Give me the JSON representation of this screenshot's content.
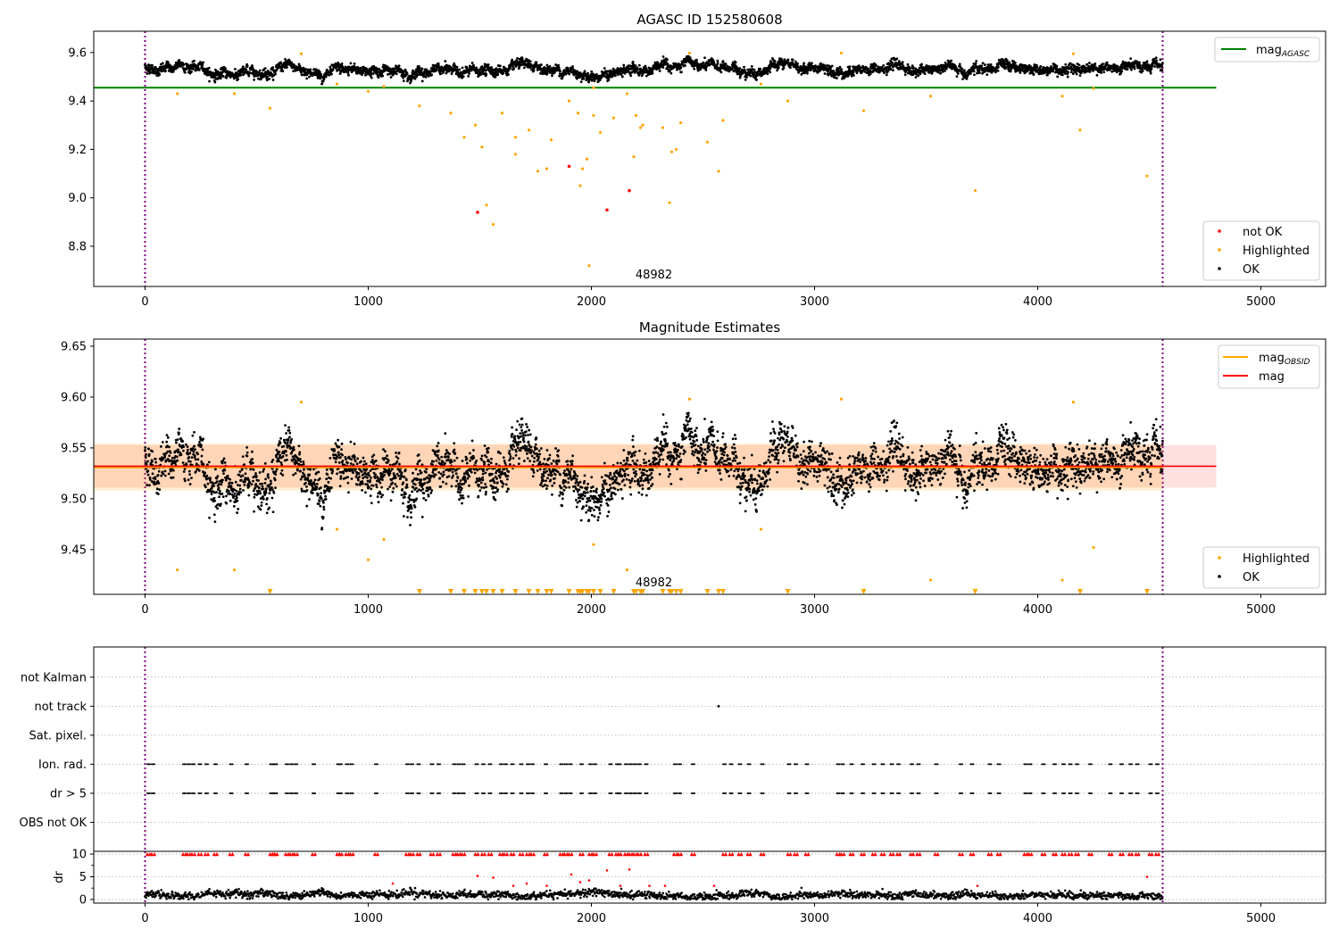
{
  "chart_data": [
    {
      "id": "agasc",
      "type": "scatter",
      "title": "AGASC ID 152580608",
      "xlim": [
        -230,
        5290
      ],
      "ylim": [
        8.634,
        9.688
      ],
      "xticks": [
        0,
        1000,
        2000,
        3000,
        4000,
        5000
      ],
      "yticks": [
        8.8,
        9.0,
        9.2,
        9.4,
        9.6
      ],
      "ytick_labels": [
        "8.8",
        "9.0",
        "9.2",
        "9.4",
        "9.6"
      ],
      "annotation": "48982",
      "annotation_x": 2280,
      "obs_bounds": [
        0,
        4560
      ],
      "mag_agasc": 9.455,
      "mag_agasc_xrange": [
        -230,
        4800
      ],
      "legend_lines": [
        {
          "label": "mag",
          "sub": "AGASC",
          "color": "#008000"
        }
      ],
      "legend_points": [
        {
          "label": "not OK",
          "color": "#ff0000"
        },
        {
          "label": "Highlighted",
          "color": "#ffa500"
        },
        {
          "label": "OK",
          "color": "#000000"
        }
      ]
    },
    {
      "id": "estimates",
      "type": "scatter",
      "title": "Magnitude Estimates",
      "xlim": [
        -230,
        5290
      ],
      "ylim": [
        9.406,
        9.657
      ],
      "xticks": [
        0,
        1000,
        2000,
        3000,
        4000,
        5000
      ],
      "yticks": [
        9.45,
        9.5,
        9.55,
        9.6,
        9.65
      ],
      "ytick_labels": [
        "9.45",
        "9.50",
        "9.55",
        "9.60",
        "9.65"
      ],
      "annotation": "48982",
      "mag": 9.532,
      "mag_band": [
        9.511,
        9.553
      ],
      "mag_obsid": 9.531,
      "mag_obsid_band": [
        9.508,
        9.554
      ],
      "legend_lines": [
        {
          "label": "mag",
          "sub": "OBSID",
          "color": "#ffa500"
        },
        {
          "label": "mag",
          "sub": "",
          "color": "#ff0000"
        }
      ],
      "legend_points": [
        {
          "label": "Highlighted",
          "color": "#ffa500"
        },
        {
          "label": "OK",
          "color": "#000000"
        }
      ]
    },
    {
      "id": "flags",
      "type": "scatter",
      "categories": [
        "OBS not OK",
        "dr > 5",
        "Ion. rad.",
        "Sat. pixel.",
        "not track",
        "not Kalman"
      ],
      "ylim": [
        -1,
        6.04
      ],
      "not_track_x": [
        2570
      ],
      "flag_x": [
        10,
        30,
        170,
        190,
        210,
        240,
        270,
        310,
        380,
        450,
        560,
        570,
        580,
        630,
        650,
        670,
        750,
        860,
        870,
        900,
        920,
        1030,
        1170,
        1190,
        1220,
        1280,
        1310,
        1380,
        1400,
        1420,
        1480,
        1510,
        1540,
        1590,
        1610,
        1640,
        1680,
        1710,
        1730,
        1790,
        1860,
        1880,
        1900,
        1950,
        1990,
        2010,
        2080,
        2110,
        2120,
        2150,
        2170,
        2190,
        2210,
        2240,
        2370,
        2390,
        2450,
        2590,
        2620,
        2660,
        2700,
        2760,
        2880,
        2910,
        2960,
        3100,
        3120,
        3160,
        3210,
        3260,
        3300,
        3340,
        3370,
        3430,
        3460,
        3540,
        3650,
        3700,
        3780,
        3820,
        3940,
        3960,
        4020,
        4070,
        4110,
        4140,
        4170,
        4230,
        4320,
        4370,
        4410,
        4440,
        4500,
        4530
      ]
    },
    {
      "id": "dr",
      "type": "scatter",
      "ylabel": "dr",
      "ylim": [
        -0.8,
        10.6
      ],
      "yticks": [
        0,
        5,
        10
      ],
      "ytick_labels": [
        "0",
        "5",
        "10"
      ],
      "xticks": [
        0,
        1000,
        2000,
        3000,
        4000,
        5000
      ],
      "clip_value": 10,
      "red_points": [
        [
          1110,
          3.5
        ],
        [
          1490,
          5.2
        ],
        [
          1560,
          4.8
        ],
        [
          1650,
          3
        ],
        [
          1710,
          3.5
        ],
        [
          1800,
          3
        ],
        [
          1910,
          5.5
        ],
        [
          1950,
          3.8
        ],
        [
          1990,
          4.2
        ],
        [
          2070,
          6.4
        ],
        [
          2170,
          6.6
        ],
        [
          2130,
          3
        ],
        [
          2260,
          3
        ],
        [
          2330,
          3
        ],
        [
          2550,
          3
        ],
        [
          3730,
          3
        ],
        [
          4490,
          5
        ]
      ]
    }
  ],
  "series": {
    "ok_trend_x_step": 100,
    "ok_trend": [
      9.54,
      9.535,
      9.545,
      9.515,
      9.51,
      9.525,
      9.535,
      9.53,
      9.51,
      9.51,
      9.53,
      9.52,
      9.53,
      9.525,
      9.525,
      9.52,
      9.53,
      9.525,
      9.53,
      9.525,
      9.515,
      9.51,
      9.525,
      9.535,
      9.535,
      9.535,
      9.535,
      9.525,
      9.535,
      9.54,
      9.535,
      9.54,
      9.525,
      9.53,
      9.535,
      9.52,
      9.535,
      9.53,
      9.53,
      9.54,
      9.53,
      9.54,
      9.54,
      9.54,
      9.535,
      9.53
    ],
    "highlighted": [
      [
        145,
        9.43
      ],
      [
        400,
        9.43
      ],
      [
        560,
        9.37
      ],
      [
        1000,
        9.44
      ],
      [
        1230,
        9.38
      ],
      [
        1370,
        9.35
      ],
      [
        1430,
        9.25
      ],
      [
        1480,
        9.3
      ],
      [
        1510,
        9.21
      ],
      [
        1530,
        8.97
      ],
      [
        1560,
        8.89
      ],
      [
        1600,
        9.35
      ],
      [
        1660,
        9.25
      ],
      [
        1660,
        9.18
      ],
      [
        1720,
        9.28
      ],
      [
        1760,
        9.11
      ],
      [
        1800,
        9.12
      ],
      [
        1820,
        9.24
      ],
      [
        1900,
        9.4
      ],
      [
        1940,
        9.35
      ],
      [
        1950,
        9.05
      ],
      [
        1960,
        9.12
      ],
      [
        1980,
        9.16
      ],
      [
        1990,
        8.72
      ],
      [
        2010,
        9.34
      ],
      [
        2040,
        9.27
      ],
      [
        2100,
        9.33
      ],
      [
        2160,
        9.43
      ],
      [
        2190,
        9.17
      ],
      [
        2200,
        9.34
      ],
      [
        2220,
        9.29
      ],
      [
        2230,
        9.3
      ],
      [
        2320,
        9.29
      ],
      [
        2350,
        8.98
      ],
      [
        2360,
        9.19
      ],
      [
        2380,
        9.2
      ],
      [
        2400,
        9.31
      ],
      [
        2520,
        9.23
      ],
      [
        2570,
        9.11
      ],
      [
        2590,
        9.32
      ],
      [
        2880,
        9.4
      ],
      [
        3220,
        9.36
      ],
      [
        3520,
        9.42
      ],
      [
        3720,
        9.03
      ],
      [
        4110,
        9.42
      ],
      [
        4190,
        9.28
      ],
      [
        4490,
        9.09
      ],
      [
        700,
        9.595
      ],
      [
        2440,
        9.598
      ],
      [
        3120,
        9.598
      ],
      [
        4160,
        9.595
      ],
      [
        1070,
        9.46
      ],
      [
        860,
        9.47
      ],
      [
        2760,
        9.47
      ],
      [
        2010,
        9.455
      ],
      [
        4250,
        9.452
      ]
    ],
    "not_ok": [
      [
        1490,
        8.94
      ],
      [
        1900,
        9.13
      ],
      [
        2070,
        8.95
      ],
      [
        2170,
        9.03
      ]
    ]
  }
}
